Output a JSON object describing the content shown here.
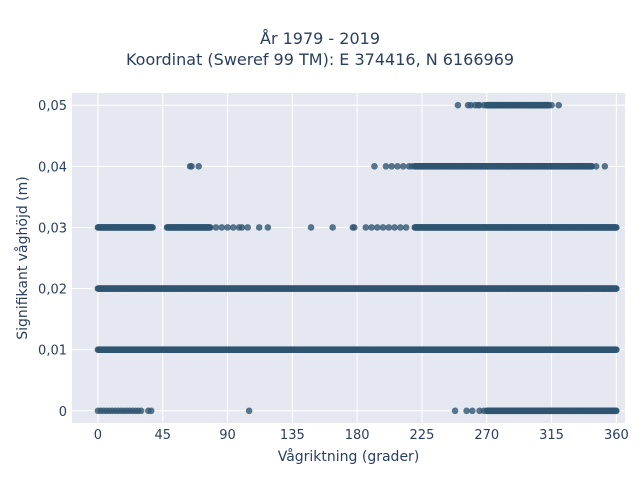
{
  "chart_data": {
    "type": "scatter",
    "title_line1": "År 1979 - 2019",
    "title_line2": "Koordinat (Sweref 99 TM): E 374416, N 6166969",
    "xlabel": "Vågriktning (grader)",
    "ylabel": "Signifikant våghöjd (m)",
    "xlim": [
      -18,
      366
    ],
    "ylim": [
      -0.002,
      0.052
    ],
    "x_ticks": [
      0,
      45,
      90,
      135,
      180,
      225,
      270,
      315,
      360
    ],
    "x_tick_labels": [
      "0",
      "45",
      "90",
      "135",
      "180",
      "225",
      "270",
      "315",
      "360"
    ],
    "y_ticks": [
      0,
      0.01,
      0.02,
      0.03,
      0.04,
      0.05
    ],
    "y_tick_labels": [
      "0",
      "0,01",
      "0,02",
      "0,03",
      "0,04",
      "0,05"
    ],
    "grid": true,
    "marker_color": "#2f5571",
    "plot_bg": "#e5e8f0",
    "series": [
      {
        "y": 0.05,
        "dense_ranges": [
          [
            270,
            313
          ]
        ],
        "points": [
          250,
          257,
          259,
          262,
          264,
          265,
          268,
          270,
          272,
          275,
          280,
          285,
          290,
          295,
          300,
          305,
          310,
          313,
          315,
          320
        ]
      },
      {
        "y": 0.04,
        "dense_ranges": [
          [
            220,
            343
          ]
        ],
        "points": [
          64,
          65,
          70,
          192,
          200,
          204,
          208,
          212,
          216,
          218,
          346,
          352
        ]
      },
      {
        "y": 0.03,
        "dense_ranges": [
          [
            0,
            38
          ],
          [
            48,
            78
          ],
          [
            220,
            360
          ]
        ],
        "points": [
          82,
          86,
          90,
          94,
          98,
          100,
          104,
          112,
          118,
          148,
          163,
          177,
          178,
          186,
          190,
          194,
          198,
          202,
          206,
          210,
          214
        ]
      },
      {
        "y": 0.02,
        "dense_ranges": [
          [
            0,
            360
          ]
        ],
        "points": []
      },
      {
        "y": 0.01,
        "dense_ranges": [
          [
            0,
            360
          ]
        ],
        "points": []
      },
      {
        "y": 0,
        "dense_ranges": [
          [
            270,
            360
          ]
        ],
        "points": [
          0,
          2,
          4,
          6,
          8,
          10,
          12,
          14,
          16,
          18,
          20,
          22,
          24,
          26,
          28,
          30,
          35,
          37,
          105,
          248,
          256,
          260,
          265,
          268
        ]
      }
    ]
  }
}
